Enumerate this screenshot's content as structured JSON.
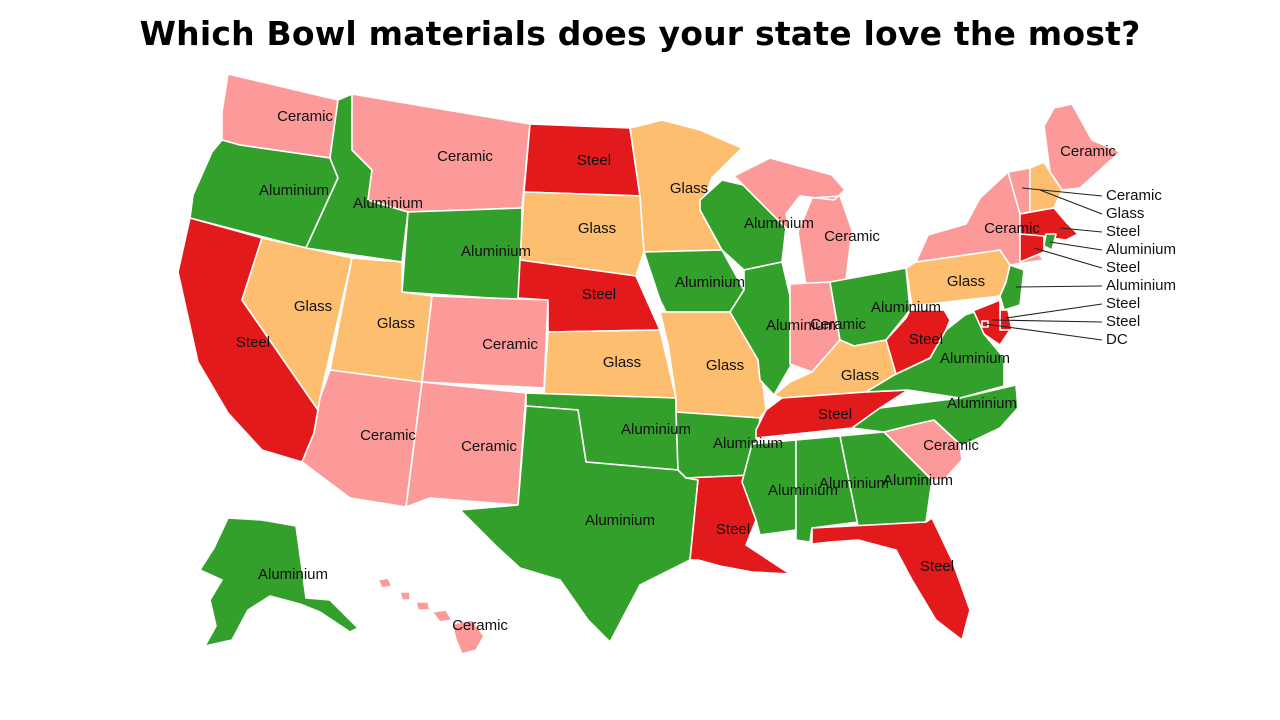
{
  "title": "Which Bowl materials does your state love the most?",
  "colors": {
    "Ceramic": "#fb9a99",
    "Glass": "#fdbf6f",
    "Steel": "#e31a1c",
    "Aluminium": "#33a02c",
    "DC": "#e31a1c"
  },
  "states": [
    {
      "name": "Washington",
      "value": "Ceramic",
      "label": "Ceramic"
    },
    {
      "name": "Oregon",
      "value": "Aluminium",
      "label": "Aluminium"
    },
    {
      "name": "California",
      "value": "Steel",
      "label": "Steel"
    },
    {
      "name": "Nevada",
      "value": "Glass",
      "label": "Glass"
    },
    {
      "name": "Idaho",
      "value": "Aluminium",
      "label": "Aluminium"
    },
    {
      "name": "Montana",
      "value": "Ceramic",
      "label": "Ceramic"
    },
    {
      "name": "Wyoming",
      "value": "Aluminium",
      "label": "Aluminium"
    },
    {
      "name": "Utah",
      "value": "Glass",
      "label": "Glass"
    },
    {
      "name": "Arizona",
      "value": "Ceramic",
      "label": "Ceramic"
    },
    {
      "name": "Colorado",
      "value": "Ceramic",
      "label": "Ceramic"
    },
    {
      "name": "New Mexico",
      "value": "Ceramic",
      "label": "Ceramic"
    },
    {
      "name": "North Dakota",
      "value": "Steel",
      "label": "Steel"
    },
    {
      "name": "South Dakota",
      "value": "Glass",
      "label": "Glass"
    },
    {
      "name": "Nebraska",
      "value": "Steel",
      "label": "Steel"
    },
    {
      "name": "Kansas",
      "value": "Glass",
      "label": "Glass"
    },
    {
      "name": "Oklahoma",
      "value": "Aluminium",
      "label": "Aluminium"
    },
    {
      "name": "Texas",
      "value": "Aluminium",
      "label": "Aluminium"
    },
    {
      "name": "Minnesota",
      "value": "Glass",
      "label": "Glass"
    },
    {
      "name": "Iowa",
      "value": "Aluminium",
      "label": "Aluminium"
    },
    {
      "name": "Missouri",
      "value": "Glass",
      "label": "Glass"
    },
    {
      "name": "Arkansas",
      "value": "Aluminium",
      "label": "Aluminium"
    },
    {
      "name": "Louisiana",
      "value": "Steel",
      "label": "Steel"
    },
    {
      "name": "Wisconsin",
      "value": "Aluminium",
      "label": "Aluminium"
    },
    {
      "name": "Illinois",
      "value": "Aluminium",
      "label": "Aluminium"
    },
    {
      "name": "Michigan",
      "value": "Ceramic",
      "label": "Ceramic"
    },
    {
      "name": "Indiana",
      "value": "Ceramic",
      "label": "Ceramic"
    },
    {
      "name": "Ohio",
      "value": "Aluminium",
      "label": "Aluminium"
    },
    {
      "name": "Kentucky",
      "value": "Glass",
      "label": "Glass"
    },
    {
      "name": "Tennessee",
      "value": "Steel",
      "label": "Steel"
    },
    {
      "name": "Mississippi",
      "value": "Aluminium",
      "label": "Aluminium"
    },
    {
      "name": "Alabama",
      "value": "Aluminium",
      "label": "Aluminium"
    },
    {
      "name": "Georgia",
      "value": "Aluminium",
      "label": "Aluminium"
    },
    {
      "name": "Florida",
      "value": "Steel",
      "label": "Steel"
    },
    {
      "name": "South Carolina",
      "value": "Ceramic",
      "label": "Ceramic"
    },
    {
      "name": "North Carolina",
      "value": "Aluminium",
      "label": "Aluminium"
    },
    {
      "name": "Virginia",
      "value": "Aluminium",
      "label": "Aluminium"
    },
    {
      "name": "West Virginia",
      "value": "Steel",
      "label": "Steel"
    },
    {
      "name": "Pennsylvania",
      "value": "Glass",
      "label": "Glass"
    },
    {
      "name": "New York",
      "value": "Ceramic",
      "label": "Ceramic"
    },
    {
      "name": "Maine",
      "value": "Ceramic",
      "label": "Ceramic"
    },
    {
      "name": "Vermont",
      "value": "Ceramic",
      "label": "Ceramic"
    },
    {
      "name": "New Hampshire",
      "value": "Glass",
      "label": "Glass"
    },
    {
      "name": "Massachusetts",
      "value": "Steel",
      "label": "Steel"
    },
    {
      "name": "Rhode Island",
      "value": "Aluminium",
      "label": "Aluminium"
    },
    {
      "name": "Connecticut",
      "value": "Steel",
      "label": "Steel"
    },
    {
      "name": "New Jersey",
      "value": "Aluminium",
      "label": "Aluminium"
    },
    {
      "name": "Delaware",
      "value": "Steel",
      "label": "Steel"
    },
    {
      "name": "Maryland",
      "value": "Steel",
      "label": "Steel"
    },
    {
      "name": "District of Columbia",
      "value": "DC",
      "label": "DC"
    },
    {
      "name": "Alaska",
      "value": "Aluminium",
      "label": "Aluminium"
    },
    {
      "name": "Hawaii",
      "value": "Ceramic",
      "label": "Ceramic"
    }
  ]
}
